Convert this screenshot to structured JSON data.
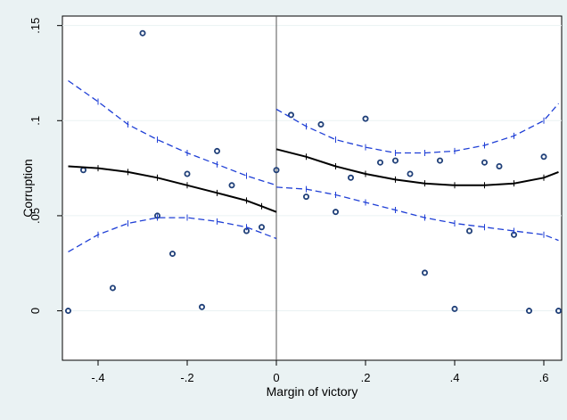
{
  "chart_data": {
    "type": "scatter",
    "title": "",
    "xlabel": "Margin of victory",
    "ylabel": "Corruption",
    "xlim": [
      -0.48,
      0.64
    ],
    "ylim": [
      -0.026,
      0.155
    ],
    "grid": "horizontal",
    "cutoff_line_x": 0,
    "x_ticks": [
      {
        "value": -0.4,
        "label": "-.4"
      },
      {
        "value": -0.2,
        "label": "-.2"
      },
      {
        "value": 0,
        "label": "0"
      },
      {
        "value": 0.2,
        "label": ".2"
      },
      {
        "value": 0.4,
        "label": ".4"
      },
      {
        "value": 0.6,
        "label": ".6"
      }
    ],
    "y_ticks": [
      {
        "value": 0,
        "label": "0"
      },
      {
        "value": 0.05,
        "label": ".05"
      },
      {
        "value": 0.1,
        "label": ".1"
      },
      {
        "value": 0.15,
        "label": ".15"
      }
    ],
    "series": [
      {
        "kind": "points",
        "color": "#1f3f78",
        "points": [
          [
            -0.467,
            0.0
          ],
          [
            -0.433,
            0.074
          ],
          [
            -0.367,
            0.012
          ],
          [
            -0.3,
            0.146
          ],
          [
            -0.267,
            0.05
          ],
          [
            -0.233,
            0.03
          ],
          [
            -0.2,
            0.072
          ],
          [
            -0.167,
            0.002
          ],
          [
            -0.133,
            0.084
          ],
          [
            -0.1,
            0.066
          ],
          [
            -0.067,
            0.042
          ],
          [
            -0.033,
            0.044
          ],
          [
            0.0,
            0.074
          ],
          [
            0.033,
            0.103
          ],
          [
            0.067,
            0.06
          ],
          [
            0.1,
            0.098
          ],
          [
            0.133,
            0.052
          ],
          [
            0.167,
            0.07
          ],
          [
            0.2,
            0.101
          ],
          [
            0.233,
            0.078
          ],
          [
            0.267,
            0.079
          ],
          [
            0.3,
            0.072
          ],
          [
            0.333,
            0.02
          ],
          [
            0.367,
            0.079
          ],
          [
            0.4,
            0.001
          ],
          [
            0.433,
            0.042
          ],
          [
            0.467,
            0.078
          ],
          [
            0.5,
            0.076
          ],
          [
            0.533,
            0.04
          ],
          [
            0.567,
            0.0
          ],
          [
            0.6,
            0.081
          ],
          [
            0.633,
            0.0
          ]
        ]
      },
      {
        "kind": "fit-left",
        "color": "#000000",
        "points": [
          [
            -0.467,
            0.076
          ],
          [
            -0.4,
            0.075
          ],
          [
            -0.333,
            0.073
          ],
          [
            -0.267,
            0.07
          ],
          [
            -0.2,
            0.066
          ],
          [
            -0.133,
            0.062
          ],
          [
            -0.067,
            0.058
          ],
          [
            -0.033,
            0.055
          ],
          [
            0.0,
            0.052
          ]
        ]
      },
      {
        "kind": "fit-right",
        "color": "#000000",
        "points": [
          [
            0.0,
            0.085
          ],
          [
            0.067,
            0.081
          ],
          [
            0.133,
            0.076
          ],
          [
            0.2,
            0.072
          ],
          [
            0.267,
            0.069
          ],
          [
            0.333,
            0.067
          ],
          [
            0.4,
            0.066
          ],
          [
            0.467,
            0.066
          ],
          [
            0.533,
            0.067
          ],
          [
            0.6,
            0.07
          ],
          [
            0.633,
            0.073
          ]
        ]
      },
      {
        "kind": "ci-upper-left",
        "color": "#1f3fd6",
        "points": [
          [
            -0.467,
            0.121
          ],
          [
            -0.4,
            0.11
          ],
          [
            -0.333,
            0.098
          ],
          [
            -0.267,
            0.09
          ],
          [
            -0.2,
            0.083
          ],
          [
            -0.133,
            0.077
          ],
          [
            -0.067,
            0.071
          ],
          [
            0.0,
            0.066
          ]
        ]
      },
      {
        "kind": "ci-lower-left",
        "color": "#1f3fd6",
        "points": [
          [
            -0.467,
            0.031
          ],
          [
            -0.4,
            0.04
          ],
          [
            -0.333,
            0.046
          ],
          [
            -0.267,
            0.049
          ],
          [
            -0.2,
            0.049
          ],
          [
            -0.133,
            0.047
          ],
          [
            -0.067,
            0.044
          ],
          [
            0.0,
            0.038
          ]
        ]
      },
      {
        "kind": "ci-upper-right",
        "color": "#1f3fd6",
        "points": [
          [
            0.0,
            0.106
          ],
          [
            0.067,
            0.097
          ],
          [
            0.133,
            0.09
          ],
          [
            0.2,
            0.086
          ],
          [
            0.267,
            0.083
          ],
          [
            0.333,
            0.083
          ],
          [
            0.4,
            0.084
          ],
          [
            0.467,
            0.087
          ],
          [
            0.533,
            0.092
          ],
          [
            0.6,
            0.1
          ],
          [
            0.633,
            0.109
          ]
        ]
      },
      {
        "kind": "ci-lower-right",
        "color": "#1f3fd6",
        "points": [
          [
            0.0,
            0.065
          ],
          [
            0.067,
            0.064
          ],
          [
            0.133,
            0.061
          ],
          [
            0.2,
            0.057
          ],
          [
            0.267,
            0.053
          ],
          [
            0.333,
            0.049
          ],
          [
            0.4,
            0.046
          ],
          [
            0.467,
            0.044
          ],
          [
            0.533,
            0.042
          ],
          [
            0.6,
            0.04
          ],
          [
            0.633,
            0.037
          ]
        ]
      }
    ]
  }
}
